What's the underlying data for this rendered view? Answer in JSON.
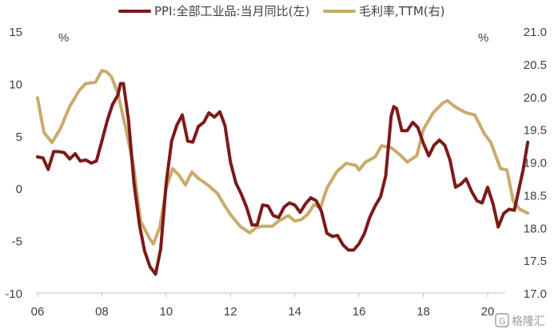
{
  "chart_data": {
    "type": "line",
    "title": "",
    "xlabel": "",
    "ylabel_left_unit": "%",
    "ylabel_right_unit": "%",
    "x_range": [
      2005.9,
      2021.0
    ],
    "x_ticks": [
      {
        "value": 2006,
        "label": "06"
      },
      {
        "value": 2008,
        "label": "08"
      },
      {
        "value": 2010,
        "label": "10"
      },
      {
        "value": 2012,
        "label": "12"
      },
      {
        "value": 2014,
        "label": "14"
      },
      {
        "value": 2016,
        "label": "16"
      },
      {
        "value": 2018,
        "label": "18"
      },
      {
        "value": 2020,
        "label": "20"
      }
    ],
    "y_left": {
      "min": -10,
      "max": 15,
      "ticks": [
        -10,
        -5,
        0,
        5,
        10,
        15
      ],
      "tick_labels": [
        "-10",
        "-5",
        "0",
        "5",
        "10",
        "15"
      ]
    },
    "y_right": {
      "min": 17.0,
      "max": 21.0,
      "ticks": [
        17.0,
        17.5,
        18.0,
        18.5,
        19.0,
        19.5,
        20.0,
        20.5,
        21.0
      ],
      "tick_labels": [
        "17.0",
        "17.5",
        "18.0",
        "18.5",
        "19.0",
        "19.5",
        "20.0",
        "20.5",
        "21.0"
      ]
    },
    "grid": false,
    "legend_position": "top-center",
    "series": [
      {
        "name": "PPI:全部工业品:当月同比(左)",
        "axis": "left",
        "color": "#7b1a1a",
        "points": [
          [
            2006.0,
            3.0
          ],
          [
            2006.17,
            2.9
          ],
          [
            2006.33,
            1.8
          ],
          [
            2006.5,
            3.5
          ],
          [
            2006.67,
            3.5
          ],
          [
            2006.83,
            3.4
          ],
          [
            2007.0,
            2.8
          ],
          [
            2007.17,
            3.3
          ],
          [
            2007.33,
            2.6
          ],
          [
            2007.5,
            2.7
          ],
          [
            2007.67,
            2.4
          ],
          [
            2007.83,
            2.6
          ],
          [
            2008.0,
            4.5
          ],
          [
            2008.17,
            6.5
          ],
          [
            2008.33,
            8.0
          ],
          [
            2008.5,
            8.9
          ],
          [
            2008.58,
            10.0
          ],
          [
            2008.67,
            10.0
          ],
          [
            2008.83,
            6.5
          ],
          [
            2009.0,
            0.5
          ],
          [
            2009.17,
            -3.5
          ],
          [
            2009.33,
            -6.0
          ],
          [
            2009.5,
            -7.5
          ],
          [
            2009.67,
            -8.2
          ],
          [
            2009.83,
            -5.8
          ],
          [
            2010.0,
            0.5
          ],
          [
            2010.17,
            4.5
          ],
          [
            2010.33,
            6.0
          ],
          [
            2010.5,
            7.0
          ],
          [
            2010.67,
            4.5
          ],
          [
            2010.83,
            4.4
          ],
          [
            2011.0,
            5.9
          ],
          [
            2011.17,
            6.3
          ],
          [
            2011.33,
            7.2
          ],
          [
            2011.5,
            6.8
          ],
          [
            2011.67,
            7.3
          ],
          [
            2011.83,
            6.0
          ],
          [
            2012.0,
            2.5
          ],
          [
            2012.17,
            0.5
          ],
          [
            2012.33,
            -0.5
          ],
          [
            2012.5,
            -1.8
          ],
          [
            2012.67,
            -3.5
          ],
          [
            2012.83,
            -3.5
          ],
          [
            2013.0,
            -1.6
          ],
          [
            2013.17,
            -1.7
          ],
          [
            2013.33,
            -2.6
          ],
          [
            2013.5,
            -2.8
          ],
          [
            2013.67,
            -1.8
          ],
          [
            2013.83,
            -1.4
          ],
          [
            2014.0,
            -1.6
          ],
          [
            2014.17,
            -2.3
          ],
          [
            2014.33,
            -1.5
          ],
          [
            2014.5,
            -0.9
          ],
          [
            2014.67,
            -1.2
          ],
          [
            2014.83,
            -2.2
          ],
          [
            2015.0,
            -4.3
          ],
          [
            2015.17,
            -4.6
          ],
          [
            2015.33,
            -4.5
          ],
          [
            2015.5,
            -5.4
          ],
          [
            2015.67,
            -5.9
          ],
          [
            2015.83,
            -5.9
          ],
          [
            2016.0,
            -5.3
          ],
          [
            2016.17,
            -4.3
          ],
          [
            2016.33,
            -2.8
          ],
          [
            2016.5,
            -1.7
          ],
          [
            2016.67,
            -0.8
          ],
          [
            2016.83,
            1.2
          ],
          [
            2017.0,
            6.9
          ],
          [
            2017.08,
            7.8
          ],
          [
            2017.17,
            7.6
          ],
          [
            2017.33,
            5.5
          ],
          [
            2017.5,
            5.5
          ],
          [
            2017.67,
            6.3
          ],
          [
            2017.83,
            5.8
          ],
          [
            2018.0,
            4.3
          ],
          [
            2018.17,
            3.1
          ],
          [
            2018.33,
            4.1
          ],
          [
            2018.5,
            4.6
          ],
          [
            2018.67,
            4.1
          ],
          [
            2018.83,
            2.7
          ],
          [
            2019.0,
            0.1
          ],
          [
            2019.17,
            0.4
          ],
          [
            2019.33,
            0.9
          ],
          [
            2019.5,
            -0.3
          ],
          [
            2019.67,
            -1.2
          ],
          [
            2019.83,
            -1.4
          ],
          [
            2020.0,
            0.1
          ],
          [
            2020.17,
            -1.5
          ],
          [
            2020.33,
            -3.7
          ],
          [
            2020.5,
            -2.4
          ],
          [
            2020.67,
            -2.0
          ],
          [
            2020.83,
            -2.1
          ],
          [
            2021.0,
            0.3
          ],
          [
            2021.1,
            1.7
          ],
          [
            2021.25,
            4.4
          ]
        ]
      },
      {
        "name": "毛利率,TTM(右)",
        "axis": "right",
        "color": "#c9ab6b",
        "points": [
          [
            2006.0,
            19.98
          ],
          [
            2006.2,
            19.45
          ],
          [
            2006.45,
            19.3
          ],
          [
            2006.7,
            19.5
          ],
          [
            2007.0,
            19.85
          ],
          [
            2007.3,
            20.1
          ],
          [
            2007.5,
            20.2
          ],
          [
            2007.8,
            20.22
          ],
          [
            2008.0,
            20.4
          ],
          [
            2008.15,
            20.38
          ],
          [
            2008.3,
            20.3
          ],
          [
            2008.5,
            20.05
          ],
          [
            2008.75,
            19.5
          ],
          [
            2009.0,
            18.9
          ],
          [
            2009.2,
            18.1
          ],
          [
            2009.5,
            17.82
          ],
          [
            2009.6,
            17.75
          ],
          [
            2009.8,
            18.0
          ],
          [
            2010.0,
            18.6
          ],
          [
            2010.2,
            18.9
          ],
          [
            2010.4,
            18.8
          ],
          [
            2010.6,
            18.65
          ],
          [
            2010.8,
            18.85
          ],
          [
            2011.0,
            18.75
          ],
          [
            2011.3,
            18.65
          ],
          [
            2011.6,
            18.52
          ],
          [
            2011.8,
            18.35
          ],
          [
            2012.0,
            18.2
          ],
          [
            2012.3,
            18.02
          ],
          [
            2012.6,
            17.92
          ],
          [
            2012.8,
            18.0
          ],
          [
            2013.0,
            18.02
          ],
          [
            2013.3,
            18.02
          ],
          [
            2013.5,
            18.1
          ],
          [
            2013.8,
            18.18
          ],
          [
            2014.0,
            18.1
          ],
          [
            2014.2,
            18.12
          ],
          [
            2014.4,
            18.2
          ],
          [
            2014.6,
            18.35
          ],
          [
            2014.8,
            18.3
          ],
          [
            2015.0,
            18.6
          ],
          [
            2015.3,
            18.85
          ],
          [
            2015.6,
            18.98
          ],
          [
            2015.9,
            18.95
          ],
          [
            2016.0,
            18.88
          ],
          [
            2016.2,
            19.0
          ],
          [
            2016.5,
            19.08
          ],
          [
            2016.7,
            19.25
          ],
          [
            2017.0,
            19.22
          ],
          [
            2017.3,
            19.1
          ],
          [
            2017.5,
            19.0
          ],
          [
            2017.8,
            19.1
          ],
          [
            2018.0,
            19.5
          ],
          [
            2018.3,
            19.75
          ],
          [
            2018.6,
            19.9
          ],
          [
            2018.75,
            19.94
          ],
          [
            2019.0,
            19.84
          ],
          [
            2019.3,
            19.76
          ],
          [
            2019.6,
            19.72
          ],
          [
            2019.9,
            19.43
          ],
          [
            2020.1,
            19.3
          ],
          [
            2020.4,
            18.9
          ],
          [
            2020.6,
            18.88
          ],
          [
            2020.8,
            18.4
          ],
          [
            2021.0,
            18.28
          ],
          [
            2021.25,
            18.22
          ]
        ]
      }
    ]
  },
  "watermark": "格隆汇",
  "watermark_icon": "watermark-logo-icon"
}
